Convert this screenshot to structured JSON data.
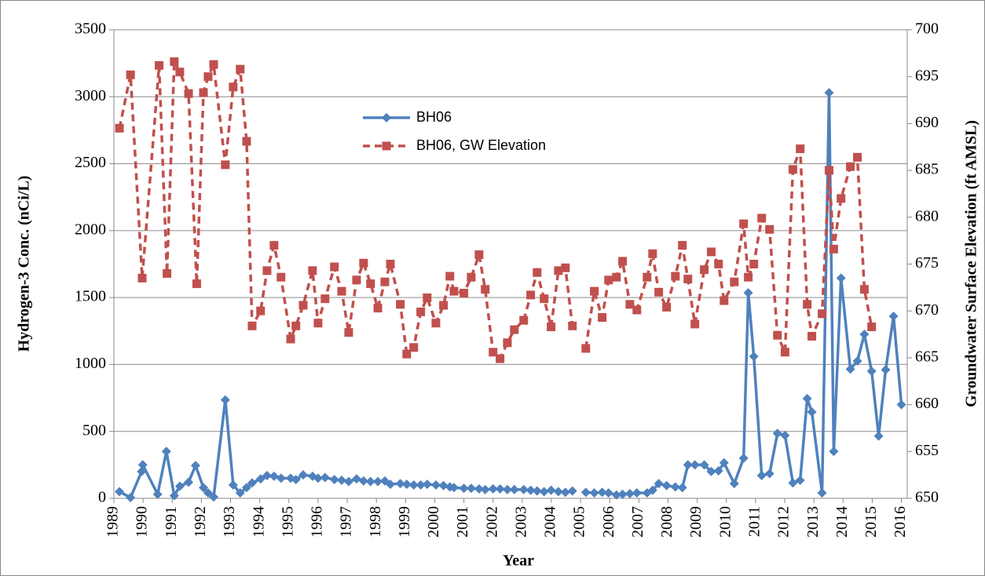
{
  "chart_data": {
    "type": "line",
    "x_label": "Year",
    "y_label": "Hydrogen-3 Conc. (nCi/L)",
    "y2_label": "Groundwater Surface Elevation (ft AMSL)",
    "xlim": [
      1989,
      2016.2
    ],
    "xticks": [
      1989,
      1990,
      1991,
      1992,
      1993,
      1994,
      1995,
      1996,
      1997,
      1998,
      1999,
      2000,
      2001,
      2002,
      2003,
      2004,
      2005,
      2006,
      2007,
      2008,
      2009,
      2010,
      2011,
      2012,
      2013,
      2014,
      2015,
      2016
    ],
    "ylim": [
      0,
      3500
    ],
    "yticks": [
      0,
      500,
      1000,
      1500,
      2000,
      2500,
      3000,
      3500
    ],
    "y2lim": [
      650,
      700
    ],
    "y2ticks": [
      650,
      655,
      660,
      665,
      670,
      675,
      680,
      685,
      690,
      695,
      700
    ],
    "grid": true,
    "series": [
      {
        "name": "BH06",
        "color": "#4f81bd",
        "marker": "diamond",
        "dashed": false,
        "x": [
          1989.19,
          1989.57,
          1989.95,
          1989.99,
          1990.5,
          1990.8,
          1991.07,
          1991.26,
          1991.56,
          1991.8,
          1992.07,
          1992.23,
          1992.42,
          1992.82,
          1993.09,
          1993.33,
          1993.55,
          1993.74,
          1994.03,
          1994.25,
          1994.49,
          1994.73,
          1995.06,
          1995.24,
          1995.49,
          1995.81,
          1996.0,
          1996.24,
          1996.56,
          1996.81,
          1997.05,
          1997.32,
          1997.56,
          1997.8,
          1998.05,
          1998.29,
          1998.48,
          1998.82,
          1999.04,
          1999.28,
          1999.52,
          1999.74,
          2000.04,
          2000.3,
          2000.52,
          2000.66,
          2001.0,
          2001.25,
          2001.52,
          2001.73,
          2002.0,
          2002.24,
          2002.49,
          2002.73,
          2003.05,
          2003.29,
          2003.51,
          2003.75,
          2003.99,
          2004.24,
          2004.48,
          2004.72,
          2004.95,
          2005.18,
          2005.47,
          2005.74,
          2005.96,
          2006.23,
          2006.44,
          2006.69,
          2006.93,
          2007.28,
          2007.47,
          2007.68,
          2007.95,
          2008.25,
          2008.49,
          2008.68,
          2008.92,
          2009.24,
          2009.48,
          2009.73,
          2009.92,
          2010.27,
          2010.59,
          2010.75,
          2010.94,
          2011.21,
          2011.48,
          2011.75,
          2012.01,
          2012.28,
          2012.53,
          2012.77,
          2012.93,
          2013.28,
          2013.52,
          2013.68,
          2013.93,
          2014.25,
          2014.49,
          2014.73,
          2014.98,
          2015.22,
          2015.46,
          2015.73,
          2016.0
        ],
        "values": [
          50,
          5,
          200,
          250,
          30,
          350,
          20,
          90,
          120,
          245,
          80,
          40,
          10,
          735,
          100,
          40,
          80,
          115,
          145,
          170,
          165,
          150,
          150,
          140,
          175,
          165,
          150,
          155,
          140,
          135,
          125,
          145,
          130,
          125,
          125,
          130,
          105,
          110,
          105,
          100,
          100,
          105,
          100,
          95,
          85,
          80,
          75,
          75,
          70,
          65,
          70,
          70,
          65,
          65,
          65,
          60,
          55,
          50,
          60,
          50,
          45,
          55,
          null,
          45,
          40,
          45,
          40,
          25,
          30,
          35,
          40,
          40,
          60,
          110,
          95,
          85,
          80,
          250,
          250,
          250,
          200,
          205,
          265,
          110,
          300,
          1535,
          1060,
          170,
          185,
          485,
          470,
          115,
          135,
          745,
          645,
          40,
          3030,
          350,
          1645,
          965,
          1025,
          1225,
          950,
          465,
          960,
          1360,
          700
        ]
      },
      {
        "name": "BH06, GW Elevation",
        "color": "#c0504d",
        "marker": "square",
        "dashed": true,
        "axis": "y2",
        "x": [
          1989.19,
          1989.57,
          1989.97,
          1990.55,
          1990.82,
          1991.07,
          1991.26,
          1991.56,
          1991.84,
          1992.07,
          1992.23,
          1992.42,
          1992.82,
          1993.09,
          1993.33,
          1993.55,
          1993.74,
          1994.03,
          1994.25,
          1994.49,
          1994.73,
          1995.06,
          1995.24,
          1995.49,
          1995.81,
          1996.0,
          1996.24,
          1996.56,
          1996.81,
          1997.05,
          1997.32,
          1997.56,
          1997.8,
          1998.05,
          1998.29,
          1998.48,
          1998.82,
          1999.04,
          1999.28,
          1999.52,
          1999.74,
          2000.04,
          2000.3,
          2000.52,
          2000.66,
          2001.0,
          2001.25,
          2001.52,
          2001.73,
          2002.0,
          2002.24,
          2002.49,
          2002.73,
          2003.05,
          2003.29,
          2003.51,
          2003.75,
          2003.99,
          2004.24,
          2004.48,
          2004.72,
          2004.95,
          2005.18,
          2005.47,
          2005.74,
          2005.96,
          2006.23,
          2006.44,
          2006.69,
          2006.93,
          2007.28,
          2007.47,
          2007.68,
          2007.95,
          2008.25,
          2008.49,
          2008.68,
          2008.92,
          2009.24,
          2009.48,
          2009.73,
          2009.92,
          2010.27,
          2010.59,
          2010.75,
          2010.94,
          2011.21,
          2011.48,
          2011.75,
          2012.01,
          2012.28,
          2012.53,
          2012.77,
          2012.93,
          2013.28,
          2013.52,
          2013.68,
          2013.93,
          2014.25,
          2014.49,
          2014.73,
          2014.98
        ],
        "values": [
          689.5,
          695.2,
          673.5,
          696.2,
          674,
          696.6,
          695.5,
          693.2,
          672.9,
          693.3,
          695,
          696.3,
          685.6,
          693.9,
          695.8,
          688.1,
          668.4,
          670,
          674.3,
          677,
          673.6,
          667,
          668.4,
          670.6,
          674.3,
          668.7,
          671.3,
          674.7,
          672.1,
          667.7,
          673.3,
          675.1,
          672.9,
          670.3,
          673.1,
          675,
          670.7,
          665.4,
          666.1,
          669.9,
          671.4,
          668.7,
          670.6,
          673.7,
          672.1,
          671.9,
          673.6,
          676,
          672.3,
          665.6,
          664.9,
          666.6,
          668,
          669,
          671.7,
          674.1,
          671.3,
          668.3,
          674.3,
          674.6,
          668.4,
          null,
          666,
          672.1,
          669.3,
          673.3,
          673.6,
          675.3,
          670.7,
          670.1,
          673.6,
          676.1,
          672,
          670.4,
          673.7,
          677,
          673.4,
          668.6,
          674.4,
          676.3,
          675,
          671.1,
          673.1,
          679.3,
          673.6,
          675,
          679.9,
          678.7,
          667.4,
          665.6,
          685.1,
          687.3,
          670.7,
          667.3,
          669.7,
          685,
          676.6,
          682,
          685.4,
          686.4,
          672.3,
          668.3
        ]
      }
    ]
  }
}
